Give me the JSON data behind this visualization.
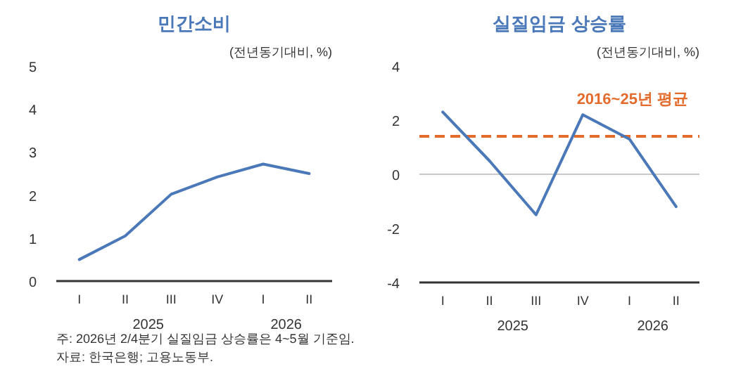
{
  "chart_data": [
    {
      "type": "line",
      "title": "민간소비",
      "ylabel": "(전년동기대비, %)",
      "categories": [
        "I",
        "II",
        "III",
        "IV",
        "I",
        "II"
      ],
      "series": [
        {
          "color": "#4a78b8",
          "values": [
            0.5,
            1.05,
            2.02,
            2.42,
            2.72,
            2.5
          ]
        }
      ],
      "ylim": [
        0,
        5
      ],
      "yticks": [
        0,
        1,
        2,
        3,
        4,
        5
      ],
      "annotations": [
        "2025",
        "2026",
        "주: 2026년 2/4분기 실질임금 상승률은 4~5월 기준임.",
        "자료: 한국은행; 고용노동부."
      ]
    },
    {
      "type": "line",
      "title": "실질임금 상승률",
      "ylabel": "(전년동기대비, %)",
      "categories": [
        "I",
        "II",
        "III",
        "IV",
        "I",
        "II"
      ],
      "series": [
        {
          "color": "#4a78b8",
          "values": [
            2.3,
            0.5,
            -1.5,
            2.2,
            1.3,
            -1.2
          ]
        }
      ],
      "ylim": [
        -4,
        4
      ],
      "yticks": [
        -4,
        -2,
        0,
        2,
        4
      ],
      "ref_lines": [
        {
          "axis": "y",
          "value": 0,
          "color": "#c8c8c8",
          "line_style": "solid"
        },
        {
          "axis": "y",
          "value": 1.4,
          "label": "2016~25년 평균",
          "color": "#e36c2c",
          "line_style": "dashed"
        }
      ],
      "annotations": [
        "2025",
        "2026"
      ]
    }
  ]
}
